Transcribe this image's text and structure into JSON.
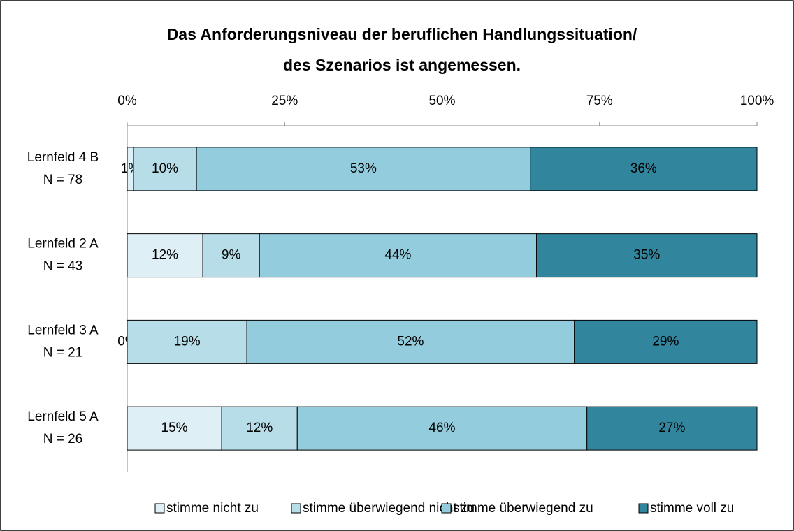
{
  "chart_data": {
    "type": "stacked_bar_horizontal",
    "title": [
      "Das Anforderungsniveau der beruflichen Handlungssituation/",
      "des Szenarios ist angemessen."
    ],
    "categories": [
      [
        "Lernfeld 4 B",
        "N = 78"
      ],
      [
        "Lernfeld 2 A",
        "N = 43"
      ],
      [
        "Lernfeld 3 A",
        "N = 21"
      ],
      [
        "Lernfeld 5 A",
        "N = 26"
      ]
    ],
    "series": [
      {
        "name": "stimme nicht zu",
        "color": "#deeff5",
        "values": [
          1,
          12,
          0,
          15
        ],
        "value_labels": [
          "1%",
          "12%",
          "0%",
          "15%"
        ]
      },
      {
        "name": "stimme überwiegend nicht zu",
        "color": "#b7dde8",
        "values": [
          10,
          9,
          19,
          12
        ],
        "value_labels": [
          "10%",
          "9%",
          "19%",
          "12%"
        ]
      },
      {
        "name": "stimme überwiegend zu",
        "color": "#93cddd",
        "values": [
          53,
          44,
          52,
          46
        ],
        "value_labels": [
          "53%",
          "44%",
          "52%",
          "46%"
        ]
      },
      {
        "name": "stimme voll zu",
        "color": "#31859c",
        "values": [
          36,
          35,
          29,
          27
        ],
        "value_labels": [
          "36%",
          "35%",
          "29%",
          "27%"
        ]
      }
    ],
    "xlim": [
      0,
      100
    ],
    "xticks": [
      {
        "value": 0,
        "label": "0%"
      },
      {
        "value": 25,
        "label": "25%"
      },
      {
        "value": 50,
        "label": "50%"
      },
      {
        "value": 75,
        "label": "75%"
      },
      {
        "value": 100,
        "label": "100%"
      }
    ],
    "legend": "bottom"
  }
}
